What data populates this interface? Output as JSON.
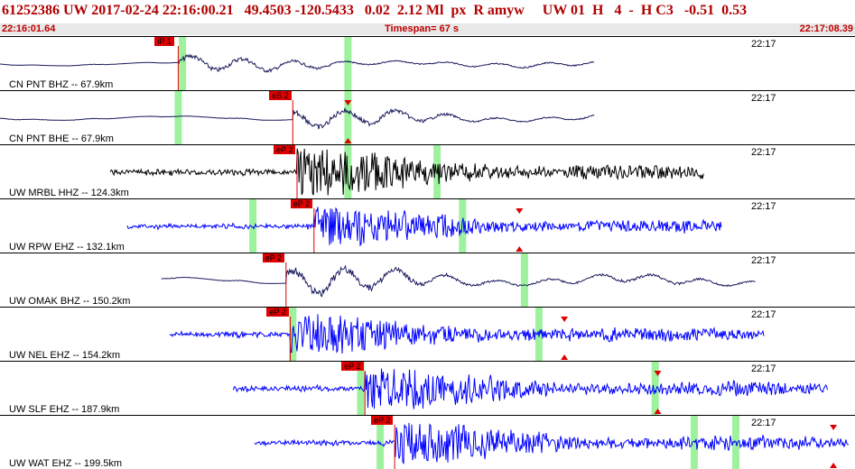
{
  "header": {
    "title": "61252386 UW 2017-02-24 22:16:00.21   49.4503 -120.5433   0.02  2.12 Ml  px  R amyw     UW 01  H   4  -  H C3   -0.51  0.53",
    "start_time": "22:16:01.64",
    "timespan": "Timespan=  67 s",
    "end_time": "22:17:08.39"
  },
  "colors": {
    "title_red": "#b00000",
    "pick_red": "#e00000",
    "window_green": "#9ef29e",
    "trace_dark": "#1a1a5e",
    "trace_blue": "#0000ff",
    "trace_black": "#000000"
  },
  "panels": [
    {
      "label": "CN PNT BHZ -- 67.9km",
      "time": "22:17",
      "pick": "iP 1",
      "pick_t": 0.21,
      "green": [
        0.215,
        0.41
      ],
      "trace": "#1a1a5e",
      "kind": "lp",
      "start": 0.0,
      "end": 0.7,
      "amp": 0.25,
      "tri": []
    },
    {
      "label": "CN PNT BHE -- 67.9km",
      "time": "22:17",
      "pick": "eS 2",
      "pick_t": 0.345,
      "green": [
        0.21,
        0.41
      ],
      "trace": "#1a1a5e",
      "kind": "lp",
      "start": 0.0,
      "end": 0.7,
      "amp": 0.3,
      "tri": [
        0.41
      ]
    },
    {
      "label": "UW MRBL HHZ -- 124.3km",
      "time": "22:17",
      "pick": "eP 2",
      "pick_t": 0.35,
      "green": [
        0.41,
        0.515
      ],
      "trace": "#000000",
      "kind": "hf",
      "start": 0.13,
      "end": 0.83,
      "amp": 0.55,
      "tri": []
    },
    {
      "label": "UW RPW EHZ -- 132.1km",
      "time": "22:17",
      "pick": "eP 2",
      "pick_t": 0.37,
      "green": [
        0.298,
        0.545
      ],
      "trace": "#0000ff",
      "kind": "hf",
      "start": 0.15,
      "end": 0.85,
      "amp": 0.45,
      "tri": [
        0.612
      ]
    },
    {
      "label": "UW OMAK BHZ -- 150.2km",
      "time": "22:17",
      "pick": "eP 2",
      "pick_t": 0.337,
      "green": [
        0.618
      ],
      "trace": "#1a1a5e",
      "kind": "lp",
      "start": 0.19,
      "end": 0.89,
      "amp": 0.45,
      "tri": []
    },
    {
      "label": "UW NEL EHZ -- 154.2km",
      "time": "22:17",
      "pick": "eP 2",
      "pick_t": 0.342,
      "green": [
        0.345,
        0.635
      ],
      "trace": "#0000ff",
      "kind": "hf",
      "start": 0.2,
      "end": 0.9,
      "amp": 0.5,
      "tri": [
        0.665
      ]
    },
    {
      "label": "UW SLF EHZ -- 187.9km",
      "time": "22:17",
      "pick": "eP 2",
      "pick_t": 0.43,
      "green": [
        0.425,
        0.772
      ],
      "trace": "#0000ff",
      "kind": "hf",
      "start": 0.275,
      "end": 0.975,
      "amp": 0.5,
      "tri": [
        0.775
      ]
    },
    {
      "label": "UW WAT EHZ -- 199.5km",
      "time": "22:17",
      "pick": "eP 2",
      "pick_t": 0.465,
      "green": [
        0.448,
        0.818,
        0.867
      ],
      "trace": "#0000ff",
      "kind": "hf",
      "start": 0.3,
      "end": 1.0,
      "amp": 0.5,
      "tri": [
        0.982
      ]
    }
  ]
}
